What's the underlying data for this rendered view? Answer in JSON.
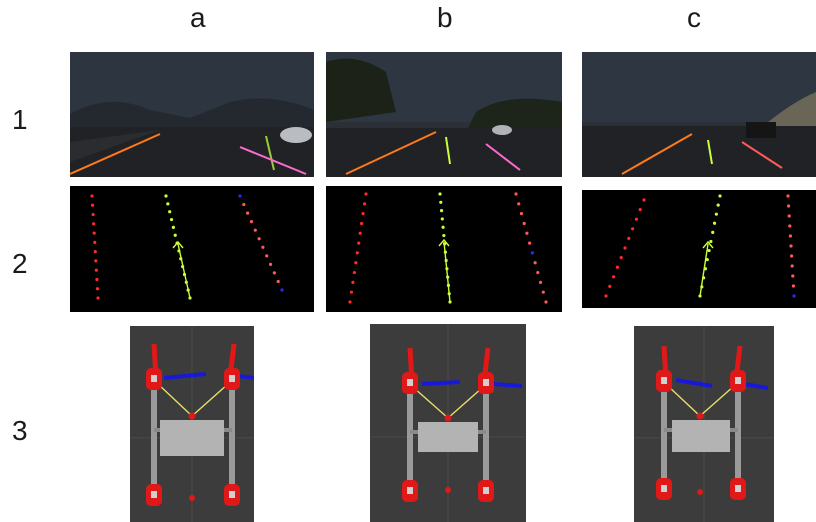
{
  "columns": [
    {
      "label": "a"
    },
    {
      "label": "b"
    },
    {
      "label": "c"
    }
  ],
  "rows": [
    {
      "label": "1"
    },
    {
      "label": "2"
    },
    {
      "label": "3"
    }
  ],
  "colors": {
    "lane_left": "#ff2a2a",
    "lane_center": "#c8ff3a",
    "lane_right": "#ff5a5a",
    "lane_alt": "#2a2aff",
    "robot_wheel": "#e01818",
    "robot_link": "#e8e06a",
    "robot_bar": "#1818d8"
  }
}
